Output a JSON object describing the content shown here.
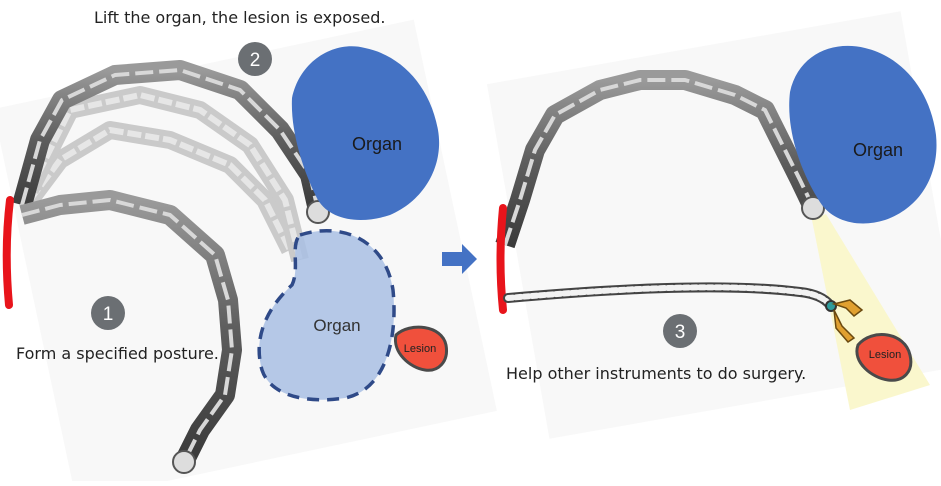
{
  "captions": {
    "lift": "Lift the organ, the lesion is exposed.",
    "posture": "Form a specified posture.",
    "help": "Help other instruments to do surgery."
  },
  "steps": [
    "1",
    "2",
    "3"
  ],
  "labels": {
    "organ": "Organ",
    "lesion": "Lesion"
  },
  "colors": {
    "organ": "#4472C4",
    "organ_ghost": "#A9BFE4",
    "organ_ghost_border": "#2F4A88",
    "lesion": "#F0503C",
    "lesion_border": "#4A4A4A",
    "tissue": "#E8141B",
    "arrow": "#4472C4",
    "step_circle": "#6B6F73",
    "light_cone": "#FAF6C8"
  }
}
